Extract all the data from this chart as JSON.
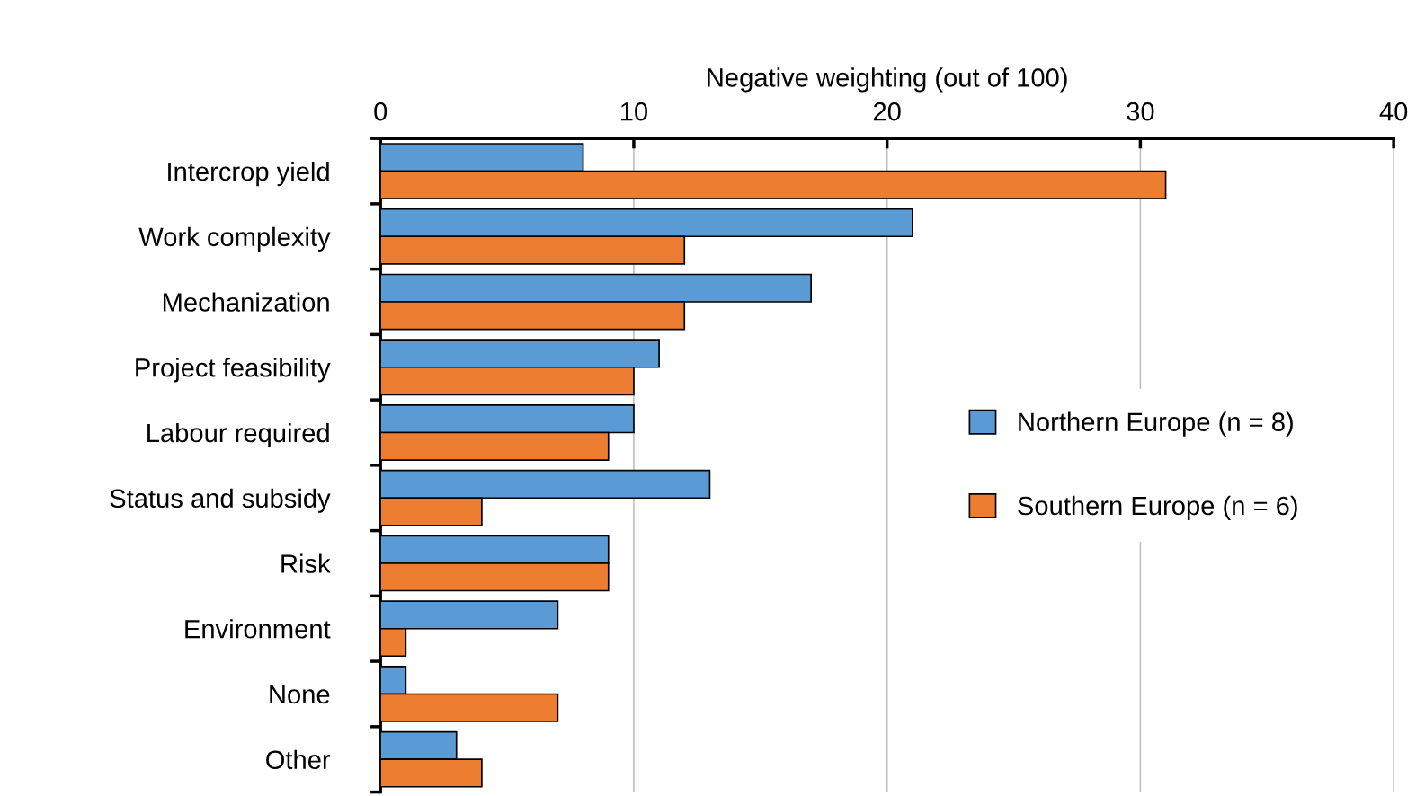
{
  "chart_data": {
    "type": "bar",
    "orientation": "horizontal",
    "xlabel": "Negative weighting (out of 100)",
    "categories": [
      "Intercrop yield",
      "Work complexity",
      "Mechanization",
      "Project feasibility",
      "Labour required",
      "Status and subsidy",
      "Risk",
      "Environment",
      "None",
      "Other"
    ],
    "series": [
      {
        "name": "Northern Europe (n = 8)",
        "color": "#5b9bd5",
        "values": [
          8,
          21,
          17,
          11,
          10,
          13,
          9,
          7,
          1,
          3
        ]
      },
      {
        "name": "Southern Europe (n = 6)",
        "color": "#ed7d31",
        "values": [
          31,
          12,
          12,
          10,
          9,
          4,
          9,
          1,
          7,
          4
        ]
      }
    ],
    "xlim": [
      0,
      40
    ],
    "xticks": [
      0,
      10,
      20,
      30,
      40
    ],
    "grid": "x",
    "legend": "right"
  }
}
